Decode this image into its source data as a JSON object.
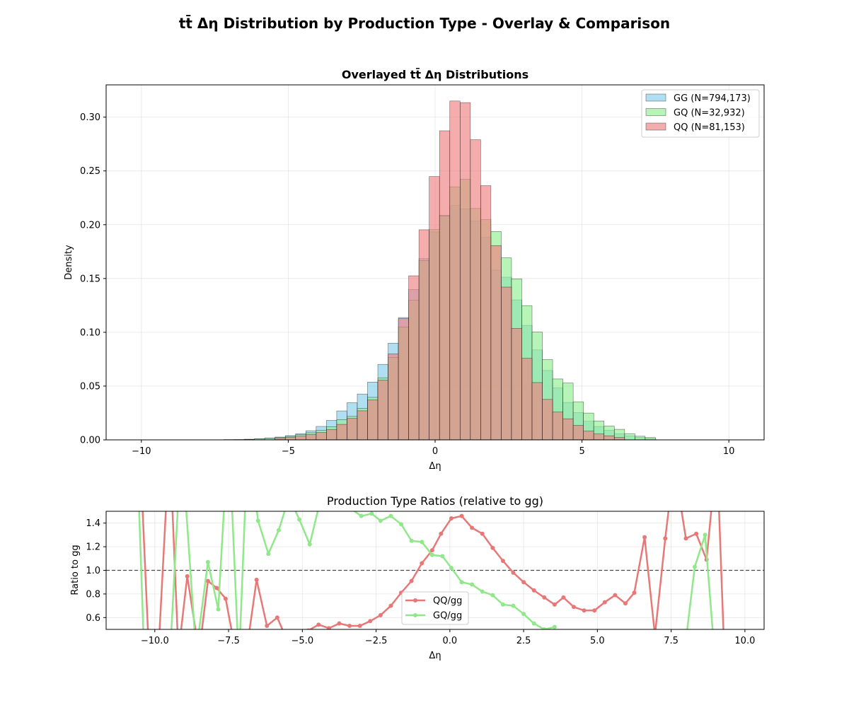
{
  "figure": {
    "title": "tt̄ Δη Distribution by Production Type - Overlay & Comparison"
  },
  "colors": {
    "GG": "#87ceeb",
    "GQ": "#90ee90",
    "QQ": "#f08080",
    "QQ_line": "#e87878",
    "GQ_line": "#90e88a"
  },
  "chart_data": [
    {
      "type": "bar",
      "title": "Overlayed tt̄ Δη Distributions",
      "xlabel": "Δη",
      "ylabel": "Density",
      "xlim": [
        -11.2,
        11.2
      ],
      "ylim": [
        0,
        0.33
      ],
      "xticks": [
        -10,
        -5,
        0,
        5,
        10
      ],
      "xtick_labels": [
        "−10",
        "−5",
        "0",
        "5",
        "10"
      ],
      "yticks": [
        0,
        0.05,
        0.1,
        0.15,
        0.2,
        0.25,
        0.3
      ],
      "ytick_labels": [
        "0.00",
        "0.05",
        "0.10",
        "0.15",
        "0.20",
        "0.25",
        "0.30"
      ],
      "grid": true,
      "legend_position": "top-right",
      "bin_width": 0.35,
      "series": [
        {
          "name": "GG (N=794,173)",
          "key": "GG",
          "bins": [
            [
              -7.2,
              0.0003
            ],
            [
              -6.85,
              0.0004
            ],
            [
              -6.5,
              0.0006
            ],
            [
              -6.15,
              0.001
            ],
            [
              -5.8,
              0.0017
            ],
            [
              -5.45,
              0.0026
            ],
            [
              -5.1,
              0.0039
            ],
            [
              -4.75,
              0.0058
            ],
            [
              -4.4,
              0.0085
            ],
            [
              -4.05,
              0.0125
            ],
            [
              -3.7,
              0.0181
            ],
            [
              -3.35,
              0.0269
            ],
            [
              -3.0,
              0.0345
            ],
            [
              -2.65,
              0.0426
            ],
            [
              -2.3,
              0.0537
            ],
            [
              -1.95,
              0.0702
            ],
            [
              -1.6,
              0.0899
            ],
            [
              -1.25,
              0.1137
            ],
            [
              -0.9,
              0.1397
            ],
            [
              -0.55,
              0.1684
            ],
            [
              -0.2,
              0.1933
            ],
            [
              0.15,
              0.2088
            ],
            [
              0.5,
              0.2178
            ],
            [
              0.85,
              0.2148
            ],
            [
              1.2,
              0.2034
            ],
            [
              1.55,
              0.1882
            ],
            [
              1.9,
              0.1578
            ],
            [
              2.25,
              0.1512
            ],
            [
              2.6,
              0.1301
            ],
            [
              2.95,
              0.1064
            ],
            [
              3.3,
              0.0836
            ],
            [
              3.65,
              0.0645
            ],
            [
              4.0,
              0.0482
            ],
            [
              4.35,
              0.0348
            ],
            [
              4.7,
              0.0254
            ],
            [
              5.05,
              0.0173
            ],
            [
              5.4,
              0.0124
            ],
            [
              5.75,
              0.0088
            ],
            [
              6.1,
              0.0057
            ],
            [
              6.45,
              0.0037
            ],
            [
              6.8,
              0.0024
            ],
            [
              7.15,
              0.0014
            ]
          ]
        },
        {
          "name": "GQ (N=32,932)",
          "key": "GQ",
          "bins": [
            [
              -6.5,
              0.0005
            ],
            [
              -6.15,
              0.0009
            ],
            [
              -5.8,
              0.0014
            ],
            [
              -5.45,
              0.0022
            ],
            [
              -5.1,
              0.0033
            ],
            [
              -4.75,
              0.0048
            ],
            [
              -4.4,
              0.0066
            ],
            [
              -4.05,
              0.0088
            ],
            [
              -3.7,
              0.0122
            ],
            [
              -3.35,
              0.0188
            ],
            [
              -3.0,
              0.0218
            ],
            [
              -2.65,
              0.0293
            ],
            [
              -2.3,
              0.0395
            ],
            [
              -1.95,
              0.0577
            ],
            [
              -1.6,
              0.0767
            ],
            [
              -1.25,
              0.1049
            ],
            [
              -0.9,
              0.1297
            ],
            [
              -0.55,
              0.1665
            ],
            [
              -0.2,
              0.1955
            ],
            [
              0.15,
              0.2082
            ],
            [
              0.5,
              0.2352
            ],
            [
              0.85,
              0.2422
            ],
            [
              1.2,
              0.2151
            ],
            [
              1.55,
              0.2047
            ],
            [
              1.9,
              0.1937
            ],
            [
              2.25,
              0.1692
            ],
            [
              2.6,
              0.1497
            ],
            [
              2.95,
              0.1248
            ],
            [
              3.3,
              0.1003
            ],
            [
              3.65,
              0.0746
            ],
            [
              4.0,
              0.0566
            ],
            [
              4.35,
              0.0528
            ],
            [
              4.7,
              0.0354
            ],
            [
              5.05,
              0.0249
            ],
            [
              5.4,
              0.0176
            ],
            [
              5.75,
              0.0128
            ],
            [
              6.1,
              0.0098
            ],
            [
              6.45,
              0.0058
            ],
            [
              6.8,
              0.0034
            ],
            [
              7.15,
              0.0021
            ]
          ]
        },
        {
          "name": "QQ (N=81,153)",
          "key": "QQ",
          "bins": [
            [
              -5.45,
              0.0013
            ],
            [
              -5.1,
              0.0022
            ],
            [
              -4.75,
              0.0035
            ],
            [
              -4.4,
              0.0049
            ],
            [
              -4.05,
              0.0068
            ],
            [
              -3.7,
              0.0097
            ],
            [
              -3.35,
              0.0144
            ],
            [
              -3.0,
              0.0199
            ],
            [
              -2.65,
              0.027
            ],
            [
              -2.3,
              0.0372
            ],
            [
              -1.95,
              0.0556
            ],
            [
              -1.6,
              0.0799
            ],
            [
              -1.25,
              0.1126
            ],
            [
              -0.9,
              0.1525
            ],
            [
              -0.55,
              0.1953
            ],
            [
              -0.2,
              0.2448
            ],
            [
              0.15,
              0.2873
            ],
            [
              0.5,
              0.315
            ],
            [
              0.85,
              0.3135
            ],
            [
              1.2,
              0.279
            ],
            [
              1.55,
              0.2363
            ],
            [
              1.9,
              0.1806
            ],
            [
              2.25,
              0.142
            ],
            [
              2.6,
              0.1036
            ],
            [
              2.95,
              0.0758
            ],
            [
              3.3,
              0.0533
            ],
            [
              3.65,
              0.0376
            ],
            [
              4.0,
              0.0259
            ],
            [
              4.35,
              0.0196
            ],
            [
              4.7,
              0.0135
            ],
            [
              5.05,
              0.0082
            ],
            [
              5.4,
              0.0055
            ],
            [
              5.75,
              0.0038
            ],
            [
              6.1,
              0.0022
            ]
          ]
        }
      ]
    },
    {
      "type": "line",
      "title": "Production Type Ratios (relative to gg)",
      "xlabel": "Δη",
      "ylabel": "Ratio to gg",
      "xlim": [
        -11.65,
        10.65
      ],
      "ylim": [
        0.5,
        1.5
      ],
      "xticks": [
        -10,
        -7.5,
        -5,
        -2.5,
        0,
        2.5,
        5,
        7.5,
        10
      ],
      "xtick_labels": [
        "−10.0",
        "−7.5",
        "−5.0",
        "−2.5",
        "0.0",
        "2.5",
        "5.0",
        "7.5",
        "10.0"
      ],
      "yticks": [
        0.6,
        0.8,
        1.0,
        1.2,
        1.4
      ],
      "ytick_labels": [
        "0.6",
        "0.8",
        "1.0",
        "1.2",
        "1.4"
      ],
      "reference_line": 1.0,
      "grid": true,
      "legend_position": "lower-center",
      "series": [
        {
          "name": "QQ/gg",
          "key": "QQ_line",
          "points": [
            [
              -10.5,
              2.0
            ],
            [
              -10.2,
              0.3
            ],
            [
              -9.9,
              0.2
            ],
            [
              -9.5,
              2.1
            ],
            [
              -9.2,
              0.3
            ],
            [
              -8.9,
              0.95
            ],
            [
              -8.5,
              0.3
            ],
            [
              -8.2,
              0.91
            ],
            [
              -7.9,
              0.85
            ],
            [
              -7.6,
              0.76
            ],
            [
              -7.25,
              0.3
            ],
            [
              -6.9,
              0.3
            ],
            [
              -6.55,
              0.92
            ],
            [
              -6.2,
              0.53
            ],
            [
              -5.85,
              0.6
            ],
            [
              -5.5,
              0.4
            ],
            [
              -5.15,
              0.44
            ],
            [
              -4.8,
              0.49
            ],
            [
              -4.45,
              0.54
            ],
            [
              -4.1,
              0.51
            ],
            [
              -3.75,
              0.55
            ],
            [
              -3.4,
              0.53
            ],
            [
              -3.05,
              0.53
            ],
            [
              -2.7,
              0.57
            ],
            [
              -2.35,
              0.62
            ],
            [
              -2.0,
              0.7
            ],
            [
              -1.65,
              0.81
            ],
            [
              -1.3,
              0.91
            ],
            [
              -0.95,
              1.06
            ],
            [
              -0.6,
              1.17
            ],
            [
              -0.3,
              1.31
            ],
            [
              0.05,
              1.44
            ],
            [
              0.4,
              1.46
            ],
            [
              0.75,
              1.36
            ],
            [
              1.1,
              1.31
            ],
            [
              1.45,
              1.19
            ],
            [
              1.8,
              1.08
            ],
            [
              2.15,
              0.98
            ],
            [
              2.5,
              0.9
            ],
            [
              2.85,
              0.83
            ],
            [
              3.2,
              0.77
            ],
            [
              3.55,
              0.71
            ],
            [
              3.85,
              0.77
            ],
            [
              4.2,
              0.69
            ],
            [
              4.55,
              0.66
            ],
            [
              4.9,
              0.66
            ],
            [
              5.25,
              0.73
            ],
            [
              5.6,
              0.79
            ],
            [
              5.95,
              0.72
            ],
            [
              6.25,
              0.81
            ],
            [
              6.6,
              1.28
            ],
            [
              6.95,
              0.45
            ],
            [
              7.3,
              1.27
            ],
            [
              7.6,
              1.9
            ],
            [
              8.0,
              1.27
            ],
            [
              8.35,
              1.31
            ],
            [
              8.7,
              1.09
            ],
            [
              9.05,
              2.0
            ],
            [
              9.3,
              0.3
            ]
          ]
        },
        {
          "name": "GQ/gg",
          "key": "GQ_line",
          "points": [
            [
              -10.6,
              2.0
            ],
            [
              -10.35,
              0.2
            ],
            [
              -9.5,
              0.2
            ],
            [
              -9.1,
              2.1
            ],
            [
              -8.6,
              0.3
            ],
            [
              -8.2,
              1.07
            ],
            [
              -7.85,
              0.67
            ],
            [
              -7.5,
              2.2
            ],
            [
              -7.15,
              0.2
            ],
            [
              -6.85,
              2.1
            ],
            [
              -6.5,
              1.42
            ],
            [
              -6.15,
              1.14
            ],
            [
              -5.8,
              1.34
            ],
            [
              -5.45,
              1.62
            ],
            [
              -5.1,
              1.43
            ],
            [
              -4.75,
              1.22
            ],
            [
              -4.4,
              1.58
            ],
            [
              -4.05,
              1.71
            ],
            [
              -3.7,
              1.65
            ],
            [
              -3.35,
              1.52
            ],
            [
              -3.0,
              1.46
            ],
            [
              -2.65,
              1.48
            ],
            [
              -2.35,
              1.42
            ],
            [
              -2.0,
              1.46
            ],
            [
              -1.65,
              1.39
            ],
            [
              -1.3,
              1.25
            ],
            [
              -0.95,
              1.24
            ],
            [
              -0.6,
              1.13
            ],
            [
              -0.25,
              1.12
            ],
            [
              0.05,
              1.02
            ],
            [
              0.4,
              0.9
            ],
            [
              0.75,
              0.88
            ],
            [
              1.1,
              0.82
            ],
            [
              1.45,
              0.79
            ],
            [
              1.8,
              0.71
            ],
            [
              2.15,
              0.7
            ],
            [
              2.5,
              0.63
            ],
            [
              2.85,
              0.55
            ],
            [
              3.2,
              0.5
            ],
            [
              3.55,
              0.52
            ]
          ],
          "points_right": [
            [
              7.9,
              0.2
            ],
            [
              8.3,
              1.03
            ],
            [
              8.65,
              1.3
            ],
            [
              9.0,
              0.2
            ]
          ]
        }
      ]
    }
  ]
}
